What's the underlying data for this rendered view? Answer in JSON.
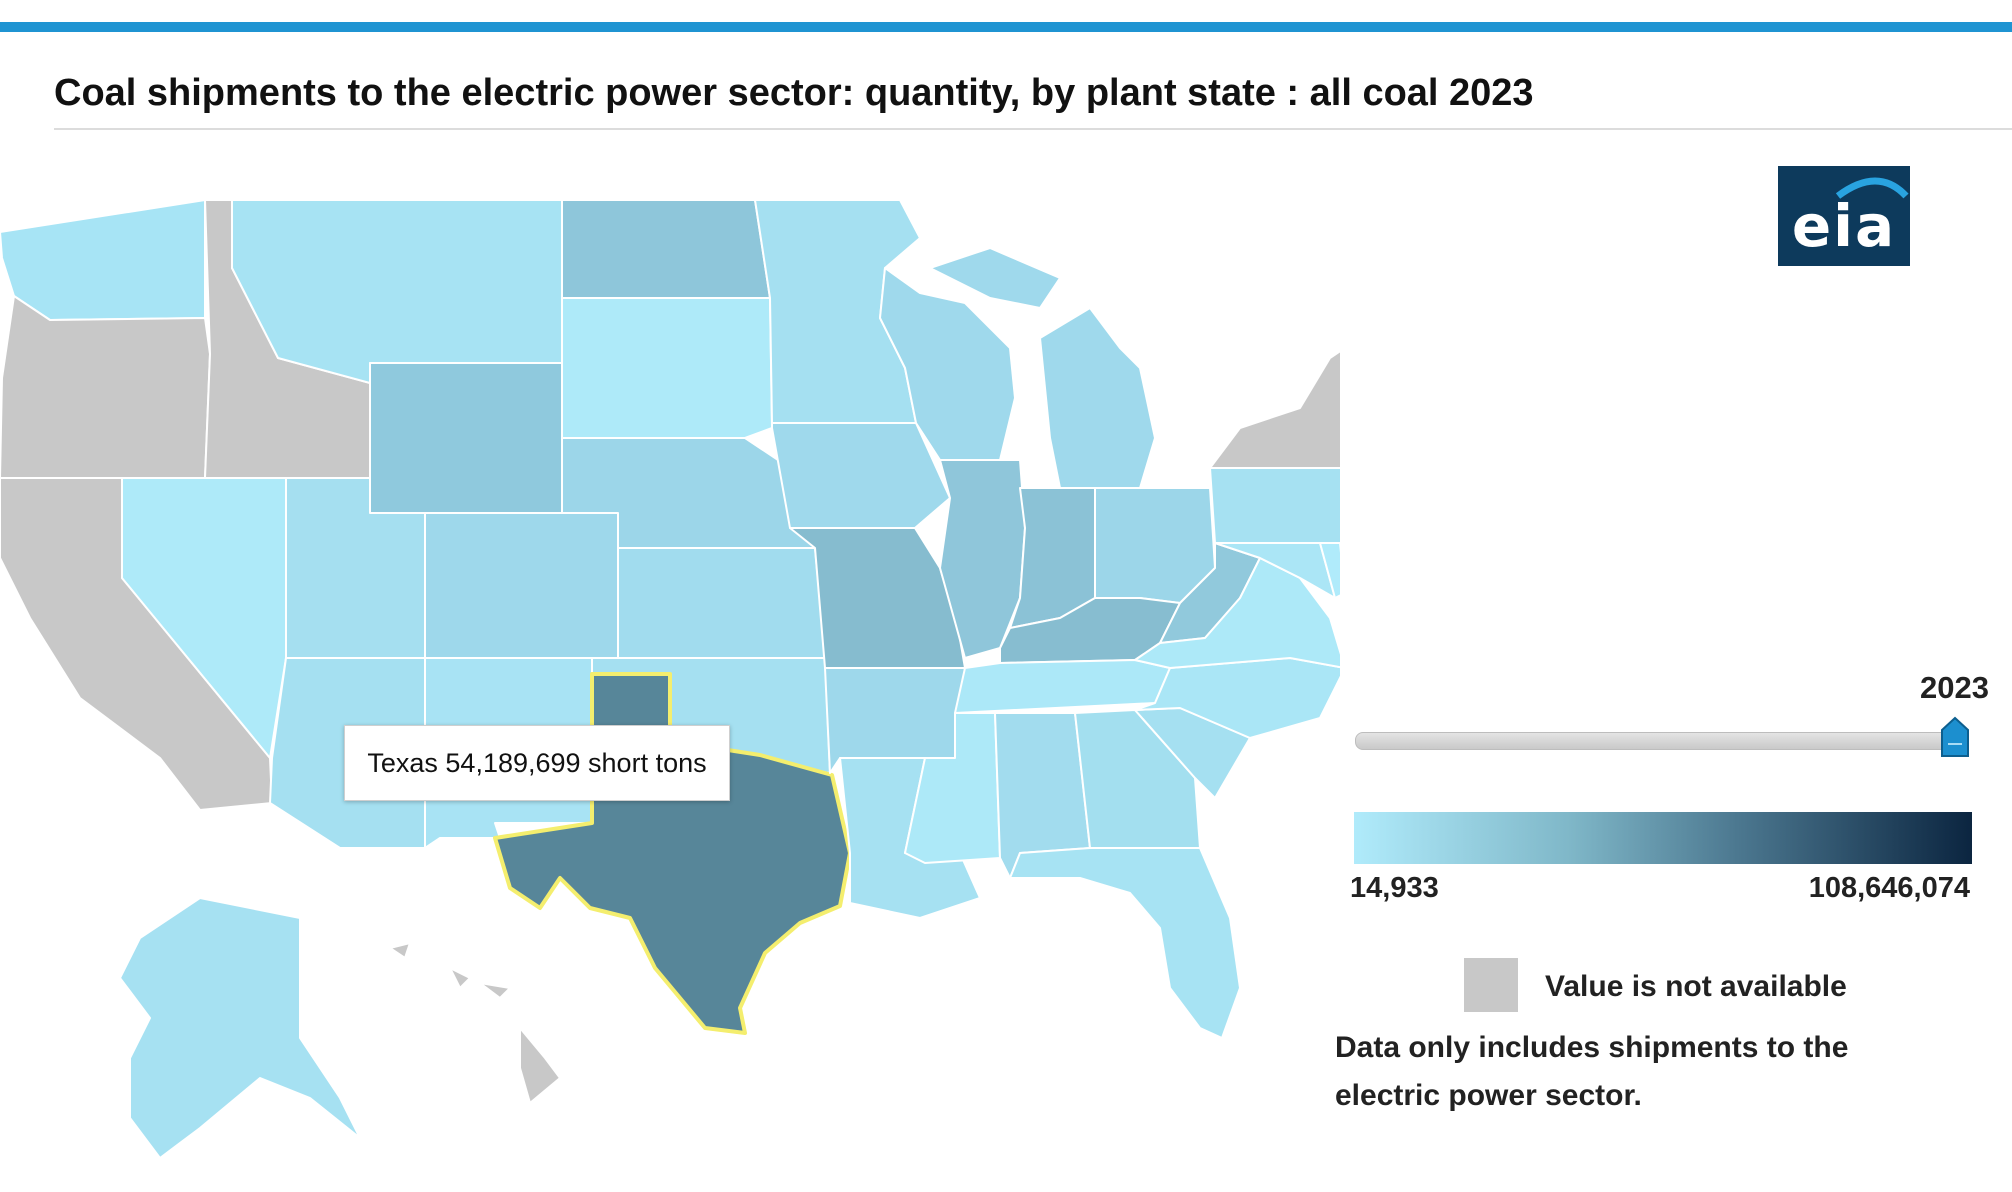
{
  "title": "Coal shipments to the electric power sector: quantity, by plant state : all coal 2023",
  "logo_text": "eia",
  "tooltip": "Texas 54,189,699 short tons",
  "year_selector": {
    "selected": "2023"
  },
  "legend": {
    "min_label": "14,933",
    "max_label": "108,646,074",
    "low_color": "#b0ebfb",
    "high_color": "#0b2540",
    "na_label": "Value is not available",
    "na_color": "#c8c8c8"
  },
  "note": "Data only includes shipments to the electric power sector.",
  "highlighted_state": "Texas",
  "state_fills": {
    "WA": "#a7e4f5",
    "OR": "#c8c8c8",
    "CA": "#c8c8c8",
    "ID": "#c8c8c8",
    "NV": "#aeeaf9",
    "MT": "#a7e3f3",
    "WY": "#8fc9dd",
    "UT": "#a5dff0",
    "AZ": "#a5e0f1",
    "CO": "#9ed8eb",
    "NM": "#a8e3f4",
    "ND": "#8ec6da",
    "SD": "#aeeaf9",
    "NE": "#9cd6e9",
    "KS": "#a1dcee",
    "OK": "#a5e0f1",
    "TX": "#578699",
    "MN": "#a5e0f1",
    "IA": "#9fd9ec",
    "MO": "#86bccf",
    "AR": "#9ed8eb",
    "LA": "#a6e1f2",
    "WI": "#9fd9ec",
    "IL": "#8fc6da",
    "MI": "#9fd9ec",
    "IN": "#8bc2d6",
    "OH": "#9cd6e9",
    "KY": "#87bdd0",
    "TN": "#ace8f8",
    "MS": "#ade9f8",
    "AL": "#a2dcee",
    "GA": "#a3dfef",
    "FL": "#a7e3f3",
    "SC": "#a5e0f1",
    "NC": "#aae6f6",
    "VA": "#ade9f8",
    "WV": "#91c9dc",
    "PA": "#a6e1f2",
    "MD": "#abe6f6",
    "DE": "#b0ebfb",
    "NJ": "#c8c8c8",
    "NY": "#c8c8c8",
    "VT": "#c8c8c8",
    "NH": "#a8e3f4",
    "ME": "#aeeaf9",
    "MA": "#c8c8c8",
    "CT": "#c8c8c8",
    "RI": "#c8c8c8",
    "AK": "#a6e1f2",
    "HI": "#c8c8c8"
  }
}
